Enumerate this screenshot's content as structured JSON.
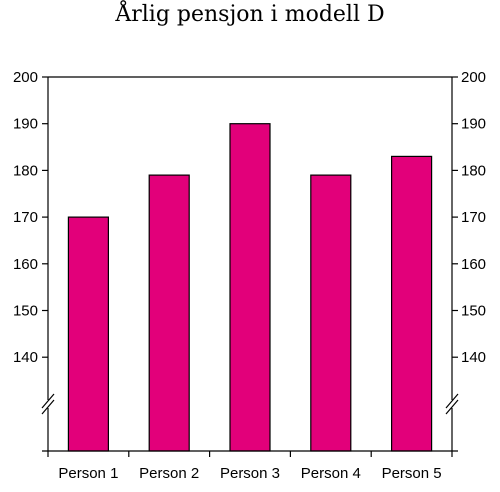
{
  "chart_data": {
    "type": "bar",
    "title": "Årlig pensjon i modell D",
    "xlabel": "",
    "ylabel": "",
    "categories": [
      "Person 1",
      "Person 2",
      "Person 3",
      "Person 4",
      "Person 5"
    ],
    "values": [
      170,
      179,
      190,
      179,
      183
    ],
    "ylim": [
      120,
      200
    ],
    "yticks": [
      140,
      150,
      160,
      170,
      180,
      190,
      200
    ],
    "axis_break": true,
    "y_axis_both_sides": true,
    "grid": false,
    "legend": "none",
    "colors": {
      "bar_fill": "#e2007a",
      "bar_stroke": "#000000",
      "axis": "#000000"
    }
  }
}
